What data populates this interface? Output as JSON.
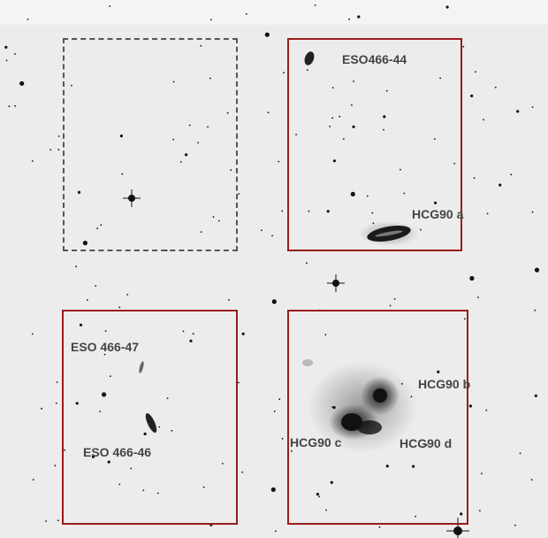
{
  "labels": {
    "eso466_44": "ESO466-44",
    "hcg90_a": "HCG90 a",
    "eso466_47": "ESO 466-47",
    "eso466_46": "ESO 466-46",
    "hcg90_b": "HCG90 b",
    "hcg90_c": "HCG90 c",
    "hcg90_d": "HCG90 d"
  },
  "colors": {
    "background": "#ececec",
    "frame_red": "#9b1c1c",
    "frame_dashed": "#555555",
    "label_text": "#444444"
  }
}
